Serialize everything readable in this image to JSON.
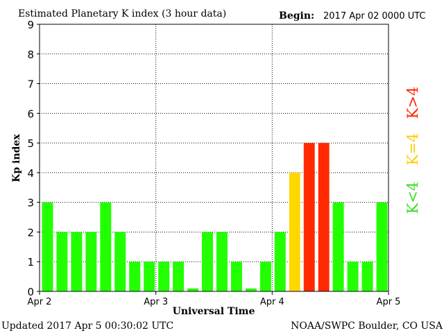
{
  "chart_data": {
    "type": "bar",
    "title": "Estimated Planetary K index (3 hour data)",
    "begin_label": "Begin:",
    "begin_value": "2017 Apr 02 0000 UTC",
    "xlabel": "Universal Time",
    "ylabel": "Kp index",
    "ylim": [
      0,
      9
    ],
    "yticks": [
      "0",
      "1",
      "2",
      "3",
      "4",
      "5",
      "6",
      "7",
      "8",
      "9"
    ],
    "xlim": [
      0,
      24
    ],
    "xticks": [
      {
        "at": 0,
        "label": "Apr 2"
      },
      {
        "at": 8,
        "label": "Apr 3"
      },
      {
        "at": 16,
        "label": "Apr 4"
      },
      {
        "at": 24,
        "label": "Apr 5"
      }
    ],
    "grid": true,
    "values": [
      3,
      2,
      2,
      2,
      3,
      2,
      1,
      1,
      1,
      1,
      0.1,
      2,
      2,
      1,
      0.1,
      1,
      2,
      4,
      5,
      5,
      3,
      1,
      1,
      3
    ],
    "colors": {
      "below4": "#22ff00",
      "equal4": "#ffd700",
      "above4": "#ff2a00"
    },
    "legend": [
      {
        "label": "K<4",
        "color": "#33dd22"
      },
      {
        "label": "K=4",
        "color": "#ffcc00"
      },
      {
        "label": "K>4",
        "color": "#ff2200"
      }
    ],
    "footer_left": "Updated 2017 Apr  5 00:30:02 UTC",
    "footer_right": "NOAA/SWPC Boulder, CO USA"
  }
}
